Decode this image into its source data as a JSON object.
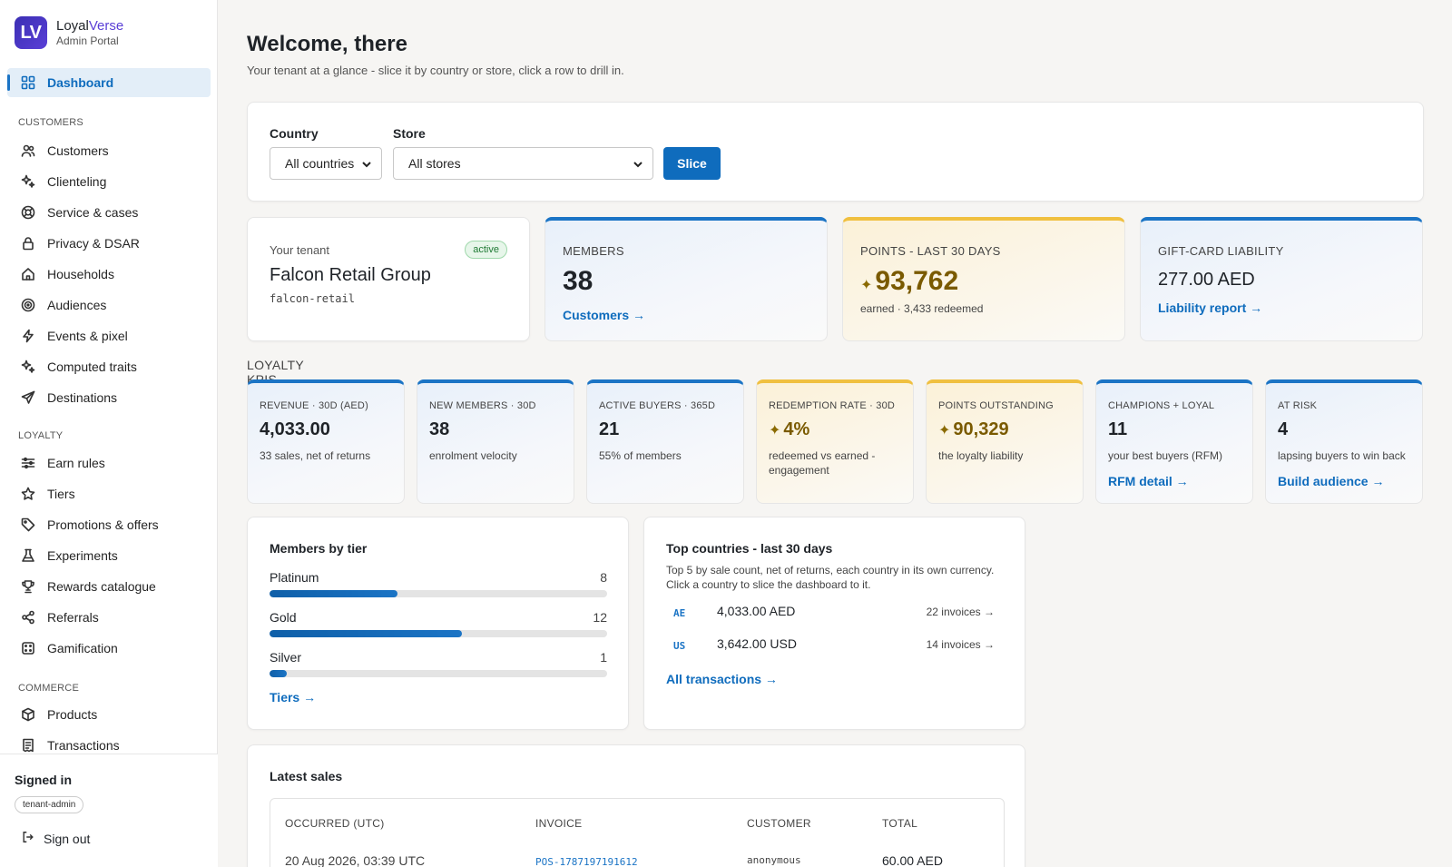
{
  "brand": {
    "logo": "LV",
    "name_part1": "Loyal",
    "name_part2": "Verse",
    "subtitle": "Admin Portal"
  },
  "sidebar": {
    "active": {
      "label": "Dashboard",
      "icon": "grid-icon"
    },
    "sections": [
      {
        "title": "CUSTOMERS",
        "items": [
          {
            "label": "Customers",
            "icon": "people-icon"
          },
          {
            "label": "Clienteling",
            "icon": "sparkle-icon"
          },
          {
            "label": "Service & cases",
            "icon": "lifebuoy-icon"
          },
          {
            "label": "Privacy & DSAR",
            "icon": "lock-icon"
          },
          {
            "label": "Households",
            "icon": "home-icon"
          },
          {
            "label": "Audiences",
            "icon": "target-icon"
          },
          {
            "label": "Events & pixel",
            "icon": "bolt-icon"
          },
          {
            "label": "Computed traits",
            "icon": "sparkle-icon"
          },
          {
            "label": "Destinations",
            "icon": "send-icon"
          }
        ]
      },
      {
        "title": "LOYALTY",
        "items": [
          {
            "label": "Earn rules",
            "icon": "sliders-icon"
          },
          {
            "label": "Tiers",
            "icon": "star-icon"
          },
          {
            "label": "Promotions & offers",
            "icon": "tag-icon"
          },
          {
            "label": "Experiments",
            "icon": "flask-icon"
          },
          {
            "label": "Rewards catalogue",
            "icon": "trophy-icon"
          },
          {
            "label": "Referrals",
            "icon": "share-icon"
          },
          {
            "label": "Gamification",
            "icon": "dice-icon"
          }
        ]
      },
      {
        "title": "COMMERCE",
        "items": [
          {
            "label": "Products",
            "icon": "box-icon"
          },
          {
            "label": "Transactions",
            "icon": "receipt-icon"
          }
        ]
      }
    ],
    "signed_in": {
      "title": "Signed in",
      "role": "tenant-admin",
      "sign_out": "Sign out"
    }
  },
  "header": {
    "title": "Welcome, there",
    "subtitle": "Your tenant at a glance - slice it by country or store, click a row to drill in."
  },
  "filters": {
    "country_label": "Country",
    "country_value": "All countries",
    "store_label": "Store",
    "store_value": "All stores",
    "slice_button": "Slice"
  },
  "tenant": {
    "label": "Your tenant",
    "status": "active",
    "name": "Falcon Retail Group",
    "slug": "falcon-retail"
  },
  "stats": {
    "members": {
      "label": "MEMBERS",
      "value": "38",
      "link": "Customers →"
    },
    "points": {
      "label": "POINTS - LAST 30 DAYS",
      "value": "93,762",
      "sub": "earned · 3,433 redeemed",
      "icon": "sparkle-icon"
    },
    "giftcard": {
      "label": "GIFT-CARD LIABILITY",
      "value": "277.00 AED",
      "link": "Liability report →"
    }
  },
  "kpi_title": "LOYALTY KPIS",
  "kpis": [
    {
      "label": "REVENUE · 30D (AED)",
      "value": "4,033.00",
      "sub": "33 sales, net of returns",
      "color": "#1b74c5"
    },
    {
      "label": "NEW MEMBERS · 30D",
      "value": "38",
      "sub": "enrolment velocity",
      "color": "#1b74c5"
    },
    {
      "label": "ACTIVE BUYERS · 365D",
      "value": "21",
      "sub": "55% of members",
      "color": "#1b74c5"
    },
    {
      "label": "REDEMPTION RATE · 30D",
      "value": "4%",
      "sub": "redeemed vs earned - engagement",
      "color": "#f0c040"
    },
    {
      "label": "POINTS OUTSTANDING",
      "value": "90,329",
      "sub": "the loyalty liability",
      "color": "#f0c040"
    },
    {
      "label": "CHAMPIONS + LOYAL",
      "value": "11",
      "sub": "your best buyers (RFM)",
      "link": "RFM detail →",
      "color": "#1b74c5"
    },
    {
      "label": "AT RISK",
      "value": "4",
      "sub": "lapsing buyers to win back",
      "link": "Build audience →",
      "color": "#1b74c5"
    }
  ],
  "tiers": {
    "title": "Members by tier",
    "rows": [
      {
        "name": "Platinum",
        "count": "8",
        "fraction": 0.38
      },
      {
        "name": "Gold",
        "count": "12",
        "fraction": 0.57
      },
      {
        "name": "Silver",
        "count": "1",
        "fraction": 0.05
      }
    ],
    "link": "Tiers →"
  },
  "countries": {
    "title": "Top countries - last 30 days",
    "desc": "Top 5 by sale count, net of returns, each country in its own currency. Click a country to slice the dashboard to it.",
    "rows": [
      {
        "code": "AE",
        "amount": "4,033.00 AED",
        "invoices": "22 invoices →"
      },
      {
        "code": "US",
        "amount": "3,642.00 USD",
        "invoices": "14 invoices →"
      }
    ],
    "link": "All transactions →"
  },
  "sales": {
    "title": "Latest sales",
    "columns": [
      "OCCURRED (UTC)",
      "INVOICE",
      "CUSTOMER",
      "TOTAL"
    ],
    "rows": [
      {
        "occurred": "20 Aug 2026, 03:39 UTC",
        "invoice": "POS-1787197191612",
        "customer": "anonymous",
        "total": "60.00 AED"
      }
    ]
  }
}
